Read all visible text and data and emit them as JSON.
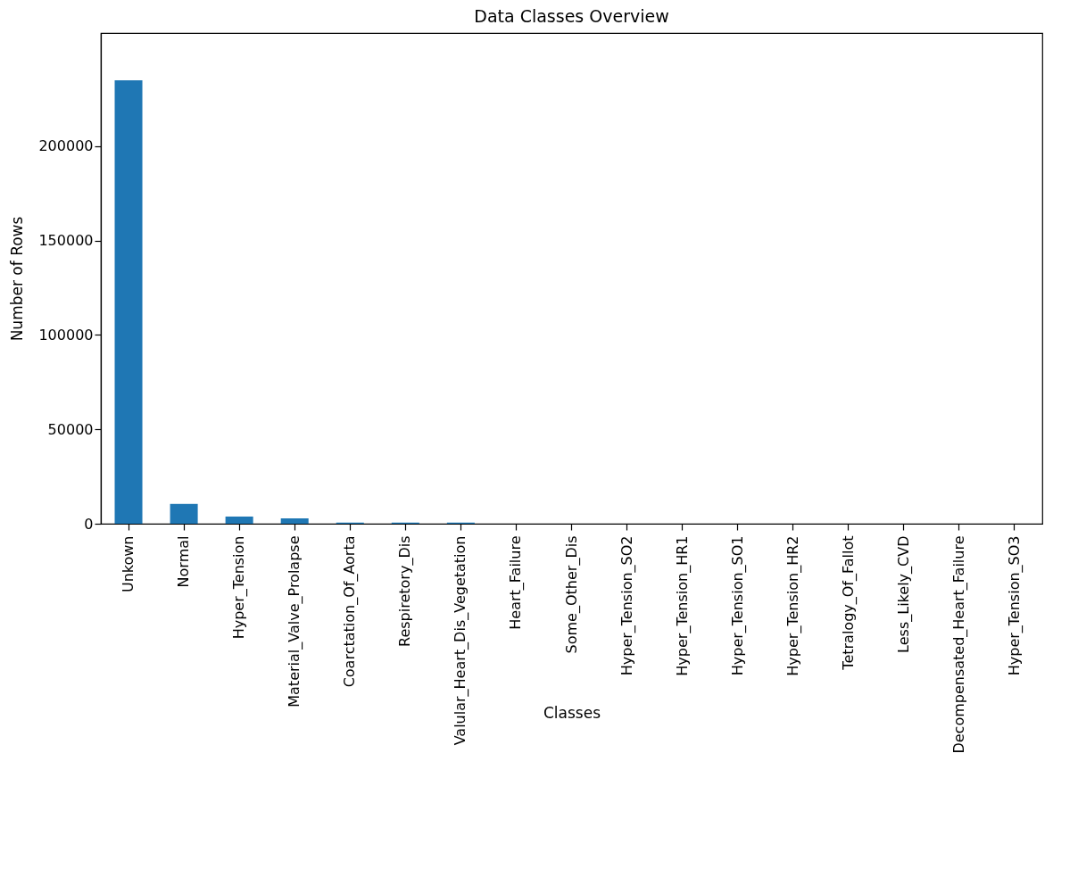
{
  "chart_data": {
    "type": "bar",
    "title": "Data Classes Overview",
    "xlabel": "Classes",
    "ylabel": "Number of Rows",
    "categories": [
      "Unkown",
      "Normal",
      "Hyper_Tension",
      "Material_Valve_Prolapse",
      "Coarctation_Of_Aorta",
      "Respiretory_Dis",
      "Valular_Heart_Dis_Vegetation",
      "Heart_Failure",
      "Some_Other_Dis",
      "Hyper_Tension_SO2",
      "Hyper_Tension_HR1",
      "Hyper_Tension_SO1",
      "Hyper_Tension_HR2",
      "Tetralogy_Of_Fallot",
      "Less_Likely_CVD",
      "Decompensated_Heart_Failure",
      "Hyper_Tension_SO3"
    ],
    "values": [
      235000,
      10500,
      3800,
      2800,
      600,
      600,
      600,
      0,
      0,
      0,
      0,
      0,
      0,
      0,
      0,
      0,
      0
    ],
    "color": "#1f77b4",
    "ylim": [
      0,
      260000
    ],
    "yticks": [
      0,
      50000,
      100000,
      150000,
      200000
    ],
    "grid": false
  }
}
